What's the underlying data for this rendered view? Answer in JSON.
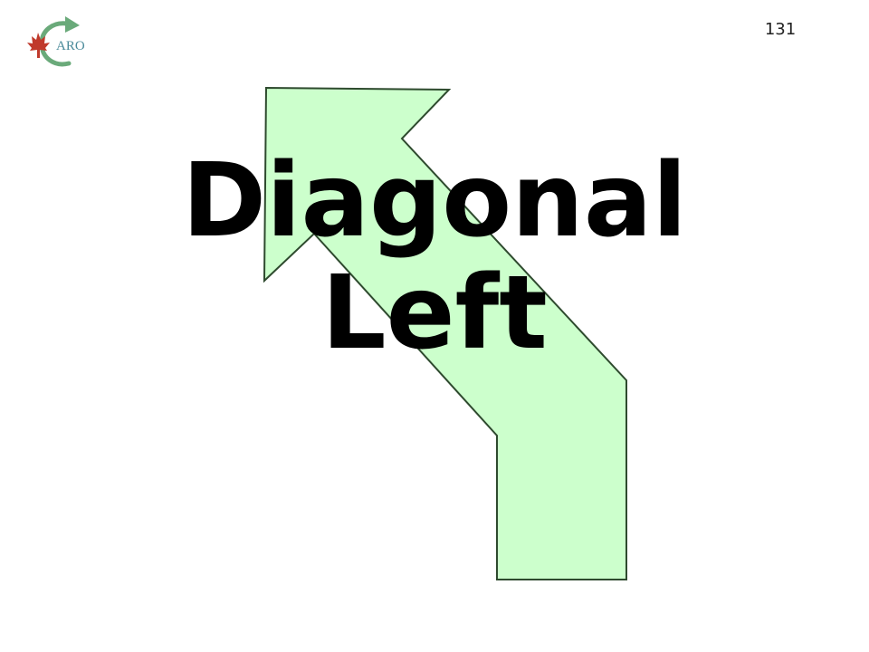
{
  "slide": {
    "page_number": "131",
    "title_line_1": "Diagonal",
    "title_line_2": "Left"
  },
  "logo": {
    "text": "ARO"
  },
  "colors": {
    "arrow_fill": "#ccffcc",
    "arrow_stroke": "#2e4a2e",
    "leaf": "#c0392b",
    "logo_arrow": "#6aaa7a"
  },
  "icons": {
    "logo_leaf": "maple-leaf-icon",
    "logo_arrow": "circular-arrow-icon",
    "main_arrow": "diagonal-left-arrow-icon"
  }
}
